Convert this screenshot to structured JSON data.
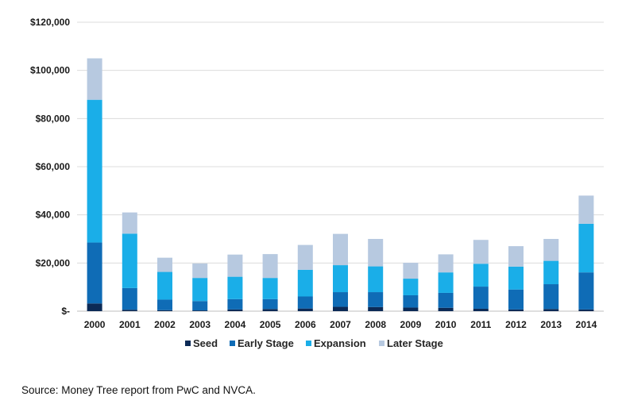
{
  "chart_data": {
    "type": "bar",
    "stacked": true,
    "categories": [
      "2000",
      "2001",
      "2002",
      "2003",
      "2004",
      "2005",
      "2006",
      "2007",
      "2008",
      "2009",
      "2010",
      "2011",
      "2012",
      "2013",
      "2014"
    ],
    "series": [
      {
        "name": "Seed",
        "color": "#0c2a56",
        "values": [
          3200,
          600,
          400,
          300,
          700,
          900,
          1100,
          1800,
          1700,
          1500,
          1400,
          1000,
          700,
          900,
          700
        ]
      },
      {
        "name": "Early Stage",
        "color": "#0f6cb6",
        "values": [
          25300,
          9000,
          4400,
          3900,
          4300,
          4100,
          5000,
          6100,
          6200,
          5100,
          6200,
          9200,
          8300,
          10300,
          15400
        ]
      },
      {
        "name": "Expansion",
        "color": "#1aaee8",
        "values": [
          59300,
          22600,
          11500,
          9600,
          9300,
          8800,
          11100,
          11200,
          10700,
          6900,
          8500,
          9500,
          9500,
          9700,
          20200
        ]
      },
      {
        "name": "Later Stage",
        "color": "#b7c9e0",
        "values": [
          17200,
          8800,
          5900,
          6000,
          9200,
          9900,
          10300,
          13000,
          11400,
          6600,
          7500,
          9900,
          8500,
          9100,
          11700
        ]
      }
    ],
    "y_ticks": [
      "$-",
      "$20,000",
      "$40,000",
      "$60,000",
      "$80,000",
      "$100,000",
      "$120,000"
    ],
    "ylim": [
      0,
      120000
    ],
    "grid": true,
    "legend_position": "bottom"
  },
  "source_note": "Source: Money Tree report from PwC and NVCA."
}
